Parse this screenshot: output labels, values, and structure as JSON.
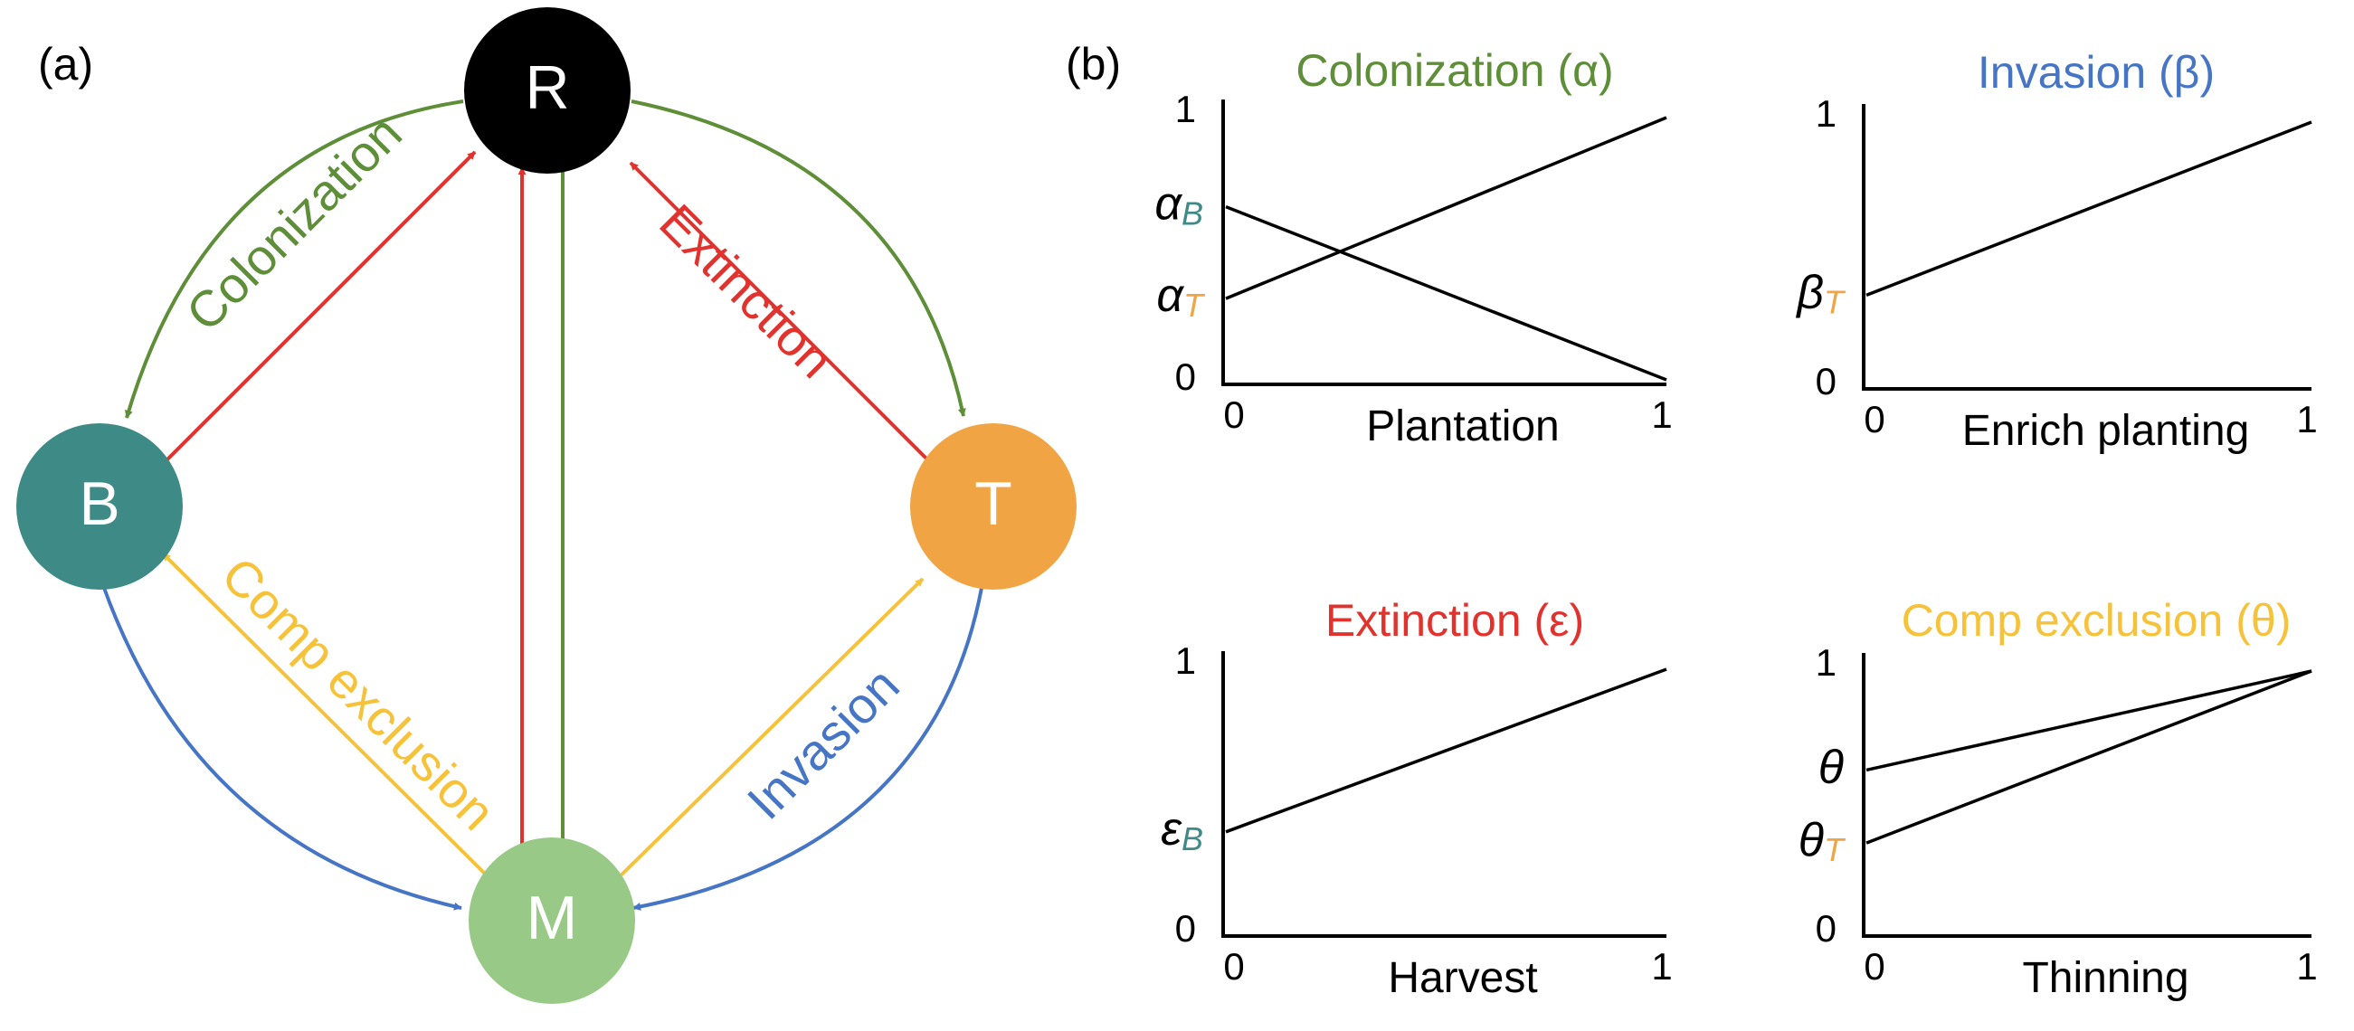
{
  "panel_a": {
    "label": "(a)",
    "nodes": [
      {
        "id": "R",
        "label": "R",
        "color": "#000000"
      },
      {
        "id": "B",
        "label": "B",
        "color": "#3e8a86"
      },
      {
        "id": "T",
        "label": "T",
        "color": "#f0a443"
      },
      {
        "id": "M",
        "label": "M",
        "color": "#98c986"
      }
    ],
    "arrow_labels": {
      "colonization": "Colonization",
      "extinction": "Extinction",
      "comp_exclusion": "Comp exclusion",
      "invasion": "Invasion"
    },
    "colors": {
      "colonization": "#5e8e38",
      "extinction": "#e2322e",
      "comp_exclusion": "#f5c23a",
      "invasion": "#4775c5"
    }
  },
  "panel_b": {
    "label": "(b)",
    "plots": [
      {
        "title": "Colonization (α)",
        "title_color": "#5e8e38",
        "xlabel": "Plantation",
        "x_ticks": [
          "0",
          "1"
        ],
        "y_ticks": [
          "0",
          "1"
        ],
        "intercept_labels": [
          {
            "symbol": "α",
            "sub": "B",
            "sub_color": "#3e8a86",
            "y": 0.66
          },
          {
            "symbol": "α",
            "sub": "T",
            "sub_color": "#f0a443",
            "y": 0.31
          }
        ],
        "lines": [
          {
            "x": [
              0,
              1
            ],
            "y": [
              0.66,
              0.0
            ]
          },
          {
            "x": [
              0,
              1
            ],
            "y": [
              0.31,
              1.0
            ]
          }
        ]
      },
      {
        "title": "Invasion (β)",
        "title_color": "#4775c5",
        "xlabel": "Enrich planting",
        "x_ticks": [
          "0",
          "1"
        ],
        "y_ticks": [
          "0",
          "1"
        ],
        "intercept_labels": [
          {
            "symbol": "β",
            "sub": "T",
            "sub_color": "#f0a443",
            "y": 0.34
          }
        ],
        "lines": [
          {
            "x": [
              0,
              1
            ],
            "y": [
              0.34,
              1.0
            ]
          }
        ]
      },
      {
        "title": "Extinction (ε)",
        "title_color": "#e2322e",
        "xlabel": "Harvest",
        "x_ticks": [
          "0",
          "1"
        ],
        "y_ticks": [
          "0",
          "1"
        ],
        "intercept_labels": [
          {
            "symbol": "ε",
            "sub": "B",
            "sub_color": "#3e8a86",
            "y": 0.38
          }
        ],
        "lines": [
          {
            "x": [
              0,
              1
            ],
            "y": [
              0.38,
              1.0
            ]
          }
        ]
      },
      {
        "title": "Comp exclusion (θ)",
        "title_color": "#f5c23a",
        "xlabel": "Thinning",
        "x_ticks": [
          "0",
          "1"
        ],
        "y_ticks": [
          "0",
          "1"
        ],
        "intercept_labels": [
          {
            "symbol": "θ",
            "sub": "",
            "sub_color": "#f5c23a",
            "y": 0.62
          },
          {
            "symbol": "θ",
            "sub": "T",
            "sub_color": "#f0a443",
            "y": 0.34
          }
        ],
        "lines": [
          {
            "x": [
              0,
              1
            ],
            "y": [
              0.62,
              1.0
            ]
          },
          {
            "x": [
              0,
              1
            ],
            "y": [
              0.34,
              1.0
            ]
          }
        ]
      }
    ]
  }
}
